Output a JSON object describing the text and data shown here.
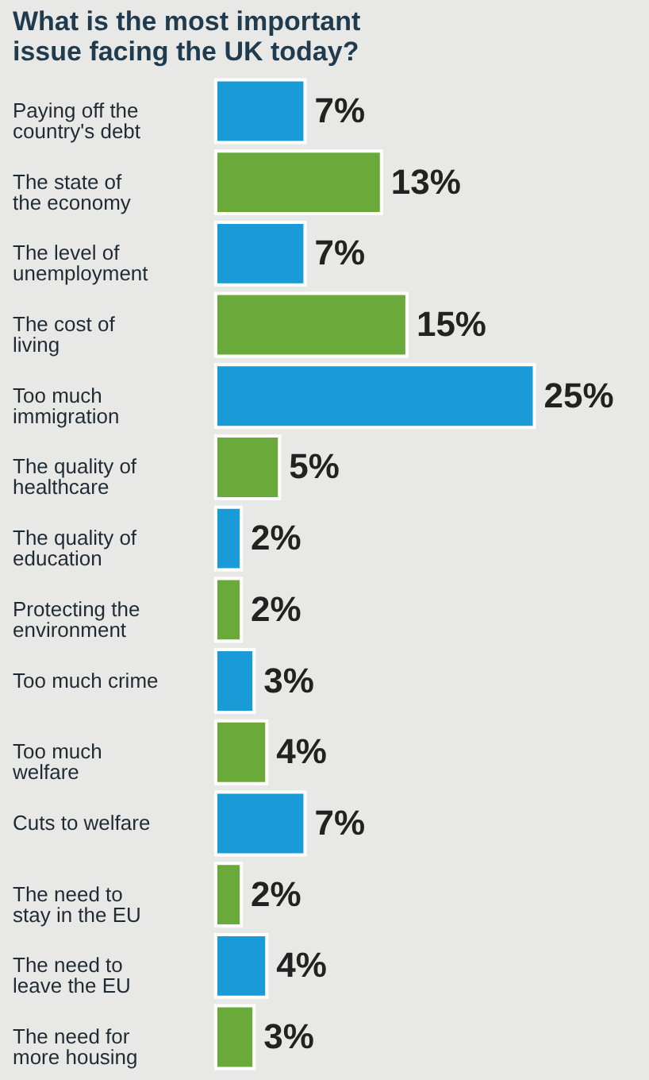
{
  "chart_data": {
    "type": "bar",
    "orientation": "horizontal",
    "title": "What is the most important issue facing the UK today?",
    "categories": [
      "Paying off the country's debt",
      "The state of the economy",
      "The level of unemployment",
      "The cost of living",
      "Too much immigration",
      "The quality of healthcare",
      "The quality of education",
      "Protecting the environment",
      "Too much crime",
      "Too much welfare",
      "Cuts to welfare",
      "The need to stay in the EU",
      "The need to leave the EU",
      "The need for more housing"
    ],
    "values": [
      7,
      13,
      7,
      15,
      25,
      5,
      2,
      2,
      3,
      4,
      7,
      2,
      4,
      3
    ],
    "colors": [
      "#1a9ad6",
      "#6aaa3a",
      "#1a9ad6",
      "#6aaa3a",
      "#1a9ad6",
      "#6aaa3a",
      "#1a9ad6",
      "#6aaa3a",
      "#1a9ad6",
      "#6aaa3a",
      "#1a9ad6",
      "#6aaa3a",
      "#1a9ad6",
      "#6aaa3a"
    ],
    "value_labels": [
      "7%",
      "13%",
      "7%",
      "15%",
      "25%",
      "5%",
      "2%",
      "2%",
      "3%",
      "4%",
      "7%",
      "2%",
      "4%",
      "3%"
    ]
  }
}
